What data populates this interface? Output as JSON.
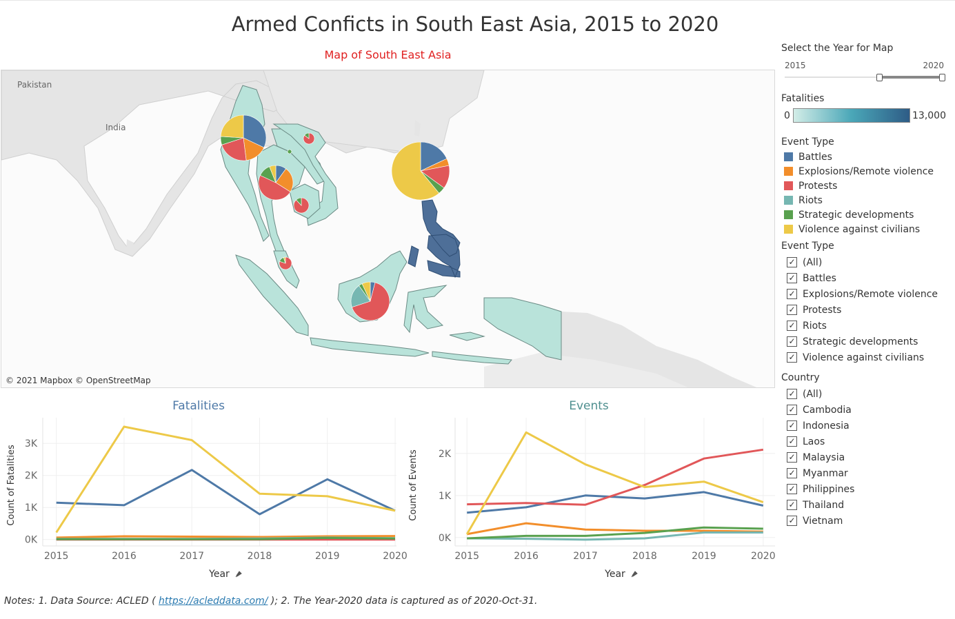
{
  "title": "Armed Conficts in South East Asia, 2015 to 2020",
  "map": {
    "title": "Map of South East Asia",
    "title_color": "#e02020",
    "attribution": "© 2021 Mapbox © OpenStreetMap",
    "place_labels": [
      "Pakistan",
      "India"
    ],
    "pies": [
      {
        "country": "Myanmar",
        "shares": [
          0.32,
          0.16,
          0.22,
          0.0,
          0.06,
          0.24
        ]
      },
      {
        "country": "Philippines",
        "shares": [
          0.18,
          0.04,
          0.13,
          0.0,
          0.04,
          0.61
        ]
      },
      {
        "country": "Thailand",
        "shares": [
          0.1,
          0.24,
          0.48,
          0.0,
          0.12,
          0.06
        ]
      },
      {
        "country": "Indonesia",
        "shares": [
          0.04,
          0.0,
          0.66,
          0.2,
          0.03,
          0.07
        ]
      },
      {
        "country": "Cambodia",
        "shares": [
          0.0,
          0.0,
          0.88,
          0.0,
          0.12,
          0.0
        ]
      },
      {
        "country": "Vietnam",
        "shares": [
          0.0,
          0.0,
          0.85,
          0.0,
          0.15,
          0.0
        ]
      },
      {
        "country": "Malaysia",
        "shares": [
          0.0,
          0.0,
          0.8,
          0.0,
          0.15,
          0.05
        ]
      },
      {
        "country": "Laos",
        "shares": [
          0.0,
          0.0,
          0.0,
          0.0,
          1.0,
          0.0
        ]
      }
    ]
  },
  "year_filter": {
    "label": "Select the Year for Map",
    "min": "2015",
    "max": "2020",
    "selected": [
      2018,
      2020
    ]
  },
  "fatalities_legend": {
    "label": "Fatalities",
    "min": "0",
    "max": "13,000",
    "color_low": "#d3ede7",
    "color_high": "#2e5c86"
  },
  "event_type_legend": {
    "label": "Event Type",
    "items": [
      {
        "name": "Battles",
        "color": "#4e79a7"
      },
      {
        "name": "Explosions/Remote violence",
        "color": "#f28e2b"
      },
      {
        "name": "Protests",
        "color": "#e15759"
      },
      {
        "name": "Riots",
        "color": "#76b7b2"
      },
      {
        "name": "Strategic developments",
        "color": "#59a14f"
      },
      {
        "name": "Violence against civilians",
        "color": "#edc948"
      }
    ]
  },
  "event_type_filter": {
    "label": "Event Type",
    "options": [
      "(All)",
      "Battles",
      "Explosions/Remote violence",
      "Protests",
      "Riots",
      "Strategic developments",
      "Violence against civilians"
    ]
  },
  "country_filter": {
    "label": "Country",
    "options": [
      "(All)",
      "Cambodia",
      "Indonesia",
      "Laos",
      "Malaysia",
      "Myanmar",
      "Philippines",
      "Thailand",
      "Vietnam"
    ]
  },
  "check_mark": "✓",
  "chart_data": [
    {
      "type": "line",
      "title": "Fatalities",
      "title_color": "#4e79a7",
      "xlabel": "Year",
      "ylabel": "Count of Fatalities",
      "x": [
        2015,
        2016,
        2017,
        2018,
        2019,
        2020
      ],
      "xlim": [
        2014.8,
        2020.02
      ],
      "ylim": [
        -200,
        3800
      ],
      "yticks": [
        0,
        1000,
        2000,
        3000
      ],
      "ytick_labels": [
        "0K",
        "1K",
        "2K",
        "3K"
      ],
      "grid": true,
      "series": [
        {
          "name": "Battles",
          "color": "#4e79a7",
          "values": [
            1150,
            1070,
            2170,
            790,
            1880,
            900
          ]
        },
        {
          "name": "Explosions/Remote violence",
          "color": "#f28e2b",
          "values": [
            60,
            100,
            90,
            80,
            100,
            110
          ]
        },
        {
          "name": "Protests",
          "color": "#e15759",
          "values": [
            0,
            0,
            0,
            0,
            0,
            0
          ]
        },
        {
          "name": "Riots",
          "color": "#76b7b2",
          "values": [
            20,
            20,
            20,
            30,
            60,
            40
          ]
        },
        {
          "name": "Strategic developments",
          "color": "#59a14f",
          "values": [
            10,
            10,
            10,
            10,
            50,
            30
          ]
        },
        {
          "name": "Violence against civilians",
          "color": "#edc948",
          "values": [
            220,
            3520,
            3100,
            1430,
            1350,
            900
          ]
        }
      ]
    },
    {
      "type": "line",
      "title": "Events",
      "title_color": "#4f8f8f",
      "xlabel": "Year",
      "ylabel": "Count of Events",
      "x": [
        2015,
        2016,
        2017,
        2018,
        2019,
        2020
      ],
      "xlim": [
        2014.8,
        2020.2
      ],
      "ylim": [
        -200,
        2850
      ],
      "yticks": [
        0,
        1000,
        2000
      ],
      "ytick_labels": [
        "0K",
        "1K",
        "2K"
      ],
      "grid": true,
      "series": [
        {
          "name": "Battles",
          "color": "#4e79a7",
          "values": [
            590,
            720,
            1000,
            930,
            1080,
            760
          ]
        },
        {
          "name": "Explosions/Remote violence",
          "color": "#f28e2b",
          "values": [
            80,
            340,
            190,
            160,
            160,
            140
          ]
        },
        {
          "name": "Protests",
          "color": "#e15759",
          "values": [
            790,
            820,
            780,
            1250,
            1880,
            2090
          ]
        },
        {
          "name": "Riots",
          "color": "#76b7b2",
          "values": [
            -20,
            -30,
            -50,
            -20,
            120,
            120
          ]
        },
        {
          "name": "Strategic developments",
          "color": "#59a14f",
          "values": [
            -20,
            40,
            40,
            110,
            240,
            210
          ]
        },
        {
          "name": "Violence against civilians",
          "color": "#edc948",
          "values": [
            80,
            2500,
            1740,
            1200,
            1330,
            840
          ]
        }
      ]
    }
  ],
  "notes": {
    "prefix": "Notes: 1. Data Source: ACLED ( ",
    "link": "https://acleddata.com/",
    "suffix": " ); 2. The Year-2020 data is captured as of 2020-Oct-31."
  }
}
